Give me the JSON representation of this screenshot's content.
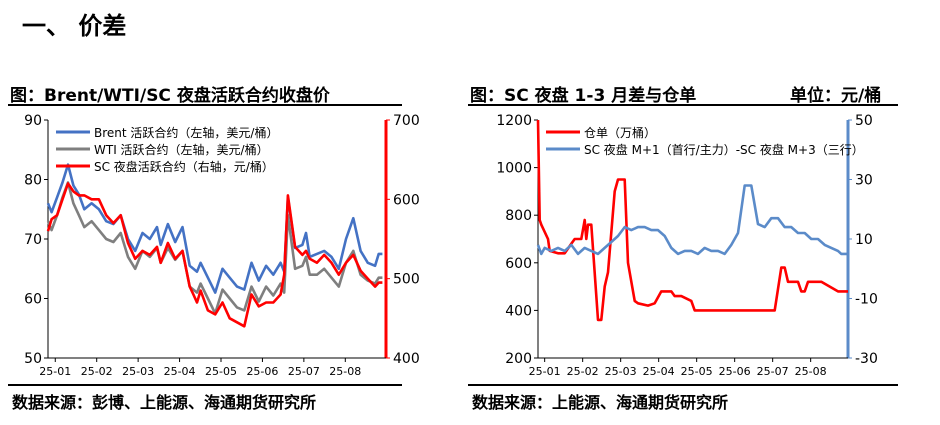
{
  "section": {
    "title": "一、 价差"
  },
  "colors": {
    "brent": "#4472C4",
    "wti": "#7F7F7F",
    "sc": "#FF0000",
    "warehouse": "#FF0000",
    "spread": "#5B8BC9"
  },
  "chart_data": [
    {
      "type": "line",
      "title": "图：Brent/WTI/SC 夜盘活跃合约收盘价",
      "source": "数据来源：彭博、上能源、海通期货研究所",
      "x_ticks": [
        "25-01",
        "25-02",
        "25-03",
        "25-04",
        "25-05",
        "25-06",
        "25-07",
        "25-08"
      ],
      "y_left": {
        "ticks": [
          "50",
          "60",
          "70",
          "80",
          "90"
        ],
        "range": [
          50,
          90
        ]
      },
      "y_right": {
        "ticks": [
          "400",
          "500",
          "600",
          "700"
        ],
        "range": [
          400,
          700
        ]
      },
      "legend_position": "top-left",
      "series": [
        {
          "name": "Brent 活跃合约（左轴，美元/桶）",
          "axis": "left",
          "color_key": "brent",
          "x": [
            0,
            0.1,
            0.25,
            0.4,
            0.55,
            0.7,
            0.85,
            1.0,
            1.2,
            1.4,
            1.6,
            1.8,
            2.0,
            2.2,
            2.4,
            2.6,
            2.8,
            3.0,
            3.1,
            3.3,
            3.5,
            3.7,
            3.9,
            4.0,
            4.1,
            4.2,
            4.4,
            4.6,
            4.8,
            5.0,
            5.2,
            5.4,
            5.6,
            5.8,
            6.0,
            6.2,
            6.4,
            6.5,
            6.6,
            6.8,
            7.0,
            7.1,
            7.2,
            7.4,
            7.6,
            7.8,
            8.0,
            8.2,
            8.4,
            8.6,
            8.8,
            9.0,
            9.1,
            9.2
          ],
          "y": [
            76,
            74.5,
            77,
            79.5,
            82.5,
            79,
            77.5,
            75,
            76,
            75,
            73,
            72.5,
            74,
            70,
            68,
            71,
            70,
            72,
            69,
            72.5,
            69.5,
            72,
            65.5,
            65,
            64.5,
            66,
            63.5,
            61,
            65,
            63.5,
            62,
            61.5,
            66,
            63,
            65.5,
            64,
            66,
            64.5,
            77,
            68.5,
            69,
            71,
            67,
            67.5,
            68,
            67,
            65,
            70,
            73.5,
            68,
            66,
            65.5,
            67.5,
            67.5
          ]
        },
        {
          "name": "WTI 活跃合约（左轴，美元/桶）",
          "axis": "left",
          "color_key": "wti",
          "x": [
            0,
            0.1,
            0.25,
            0.4,
            0.55,
            0.7,
            0.85,
            1.0,
            1.2,
            1.4,
            1.6,
            1.8,
            2.0,
            2.2,
            2.4,
            2.6,
            2.8,
            3.0,
            3.1,
            3.3,
            3.5,
            3.7,
            3.9,
            4.0,
            4.1,
            4.2,
            4.4,
            4.6,
            4.8,
            5.0,
            5.2,
            5.4,
            5.6,
            5.8,
            6.0,
            6.2,
            6.4,
            6.5,
            6.6,
            6.8,
            7.0,
            7.1,
            7.2,
            7.4,
            7.6,
            7.8,
            8.0,
            8.2,
            8.4,
            8.6,
            8.8,
            9.0,
            9.1,
            9.2
          ],
          "y": [
            73,
            71.5,
            74,
            77,
            79.5,
            76,
            74,
            72,
            73,
            71.5,
            70,
            69.5,
            71,
            67,
            65,
            68,
            67,
            68.5,
            66,
            68.5,
            66.5,
            68,
            62,
            61.5,
            61,
            62.5,
            60,
            57.5,
            61.5,
            60,
            58.5,
            58,
            62,
            59.5,
            62,
            60.5,
            62.5,
            61,
            74,
            65,
            65.5,
            67,
            64,
            64,
            65,
            63.5,
            62,
            66,
            68,
            64,
            63,
            62.5,
            63.5,
            63.5
          ]
        },
        {
          "name": "SC 夜盘活跃合约（右轴，元/桶）",
          "axis": "right",
          "color_key": "sc",
          "x": [
            0,
            0.1,
            0.25,
            0.4,
            0.55,
            0.7,
            0.85,
            1.0,
            1.2,
            1.4,
            1.6,
            1.8,
            2.0,
            2.2,
            2.4,
            2.6,
            2.8,
            3.0,
            3.1,
            3.3,
            3.5,
            3.7,
            3.9,
            4.0,
            4.1,
            4.2,
            4.4,
            4.6,
            4.8,
            5.0,
            5.2,
            5.4,
            5.6,
            5.8,
            6.0,
            6.2,
            6.4,
            6.5,
            6.6,
            6.8,
            7.0,
            7.1,
            7.2,
            7.4,
            7.6,
            7.8,
            8.0,
            8.2,
            8.4,
            8.6,
            8.8,
            9.0,
            9.1,
            9.2
          ],
          "y": [
            560,
            575,
            580,
            600,
            620,
            610,
            605,
            605,
            600,
            600,
            580,
            570,
            580,
            545,
            525,
            535,
            530,
            540,
            520,
            545,
            525,
            535,
            490,
            480,
            470,
            485,
            460,
            455,
            470,
            450,
            445,
            440,
            480,
            465,
            470,
            470,
            480,
            505,
            605,
            540,
            530,
            535,
            525,
            520,
            530,
            520,
            505,
            520,
            530,
            510,
            500,
            490,
            495,
            495
          ]
        }
      ]
    },
    {
      "type": "line",
      "title": "图：SC 夜盘 1-3 月差与仓单",
      "unit": "单位：元/桶",
      "source": "数据来源：上能源、海通期货研究所",
      "x_ticks": [
        "25-01",
        "25-02",
        "25-03",
        "25-04",
        "25-05",
        "25-06",
        "25-07",
        "25-08"
      ],
      "y_left": {
        "ticks": [
          "200",
          "400",
          "600",
          "800",
          "1000",
          "1200"
        ],
        "range": [
          200,
          1200
        ]
      },
      "y_right": {
        "ticks": [
          "-30",
          "-10",
          "10",
          "30",
          "50"
        ],
        "range": [
          -30,
          50
        ]
      },
      "legend_position": "top-left",
      "series": [
        {
          "name": "仓单（万桶）",
          "axis": "left",
          "color_key": "warehouse",
          "x": [
            0,
            0.05,
            0.1,
            0.3,
            0.35,
            0.6,
            0.8,
            1.0,
            1.1,
            1.3,
            1.4,
            1.45,
            1.5,
            1.6,
            1.8,
            1.9,
            2.0,
            2.1,
            2.3,
            2.4,
            2.5,
            2.6,
            2.7,
            2.9,
            3.0,
            3.3,
            3.5,
            3.7,
            3.8,
            4.0,
            4.1,
            4.2,
            4.3,
            4.6,
            4.7,
            5.0,
            5.1,
            5.5,
            6.0,
            6.5,
            7.0,
            7.1,
            7.3,
            7.4,
            7.5,
            7.8,
            7.9,
            8.0,
            8.1,
            8.5,
            9.0,
            9.3
          ],
          "y": [
            1200,
            780,
            760,
            700,
            650,
            640,
            640,
            680,
            700,
            700,
            780,
            700,
            760,
            760,
            360,
            360,
            500,
            560,
            900,
            950,
            950,
            950,
            600,
            440,
            430,
            420,
            430,
            480,
            480,
            480,
            460,
            460,
            460,
            440,
            400,
            400,
            400,
            400,
            400,
            400,
            400,
            400,
            580,
            580,
            520,
            520,
            480,
            480,
            520,
            520,
            480,
            480
          ]
        },
        {
          "name": "SC 夜盘 M+1（首行/主力）-SC 夜盘 M+3（三行）",
          "axis": "right",
          "color_key": "spread",
          "x": [
            0,
            0.1,
            0.2,
            0.4,
            0.6,
            0.8,
            1.0,
            1.2,
            1.4,
            1.6,
            1.8,
            2.0,
            2.2,
            2.4,
            2.6,
            2.8,
            3.0,
            3.2,
            3.4,
            3.6,
            3.8,
            4.0,
            4.2,
            4.4,
            4.6,
            4.8,
            5.0,
            5.2,
            5.4,
            5.6,
            5.8,
            6.0,
            6.2,
            6.4,
            6.6,
            6.8,
            7.0,
            7.2,
            7.4,
            7.6,
            7.8,
            8.0,
            8.2,
            8.4,
            8.6,
            8.8,
            9.0,
            9.1,
            9.3
          ],
          "y": [
            8,
            5,
            7,
            6,
            7,
            6,
            8,
            5,
            7,
            6,
            5,
            7,
            9,
            11,
            14,
            13,
            14,
            14,
            13,
            13,
            11,
            7,
            5,
            6,
            6,
            5,
            7,
            6,
            6,
            5,
            8,
            12,
            28,
            28,
            15,
            14,
            17,
            17,
            14,
            14,
            12,
            12,
            10,
            10,
            8,
            7,
            6,
            5,
            5
          ]
        }
      ]
    }
  ]
}
